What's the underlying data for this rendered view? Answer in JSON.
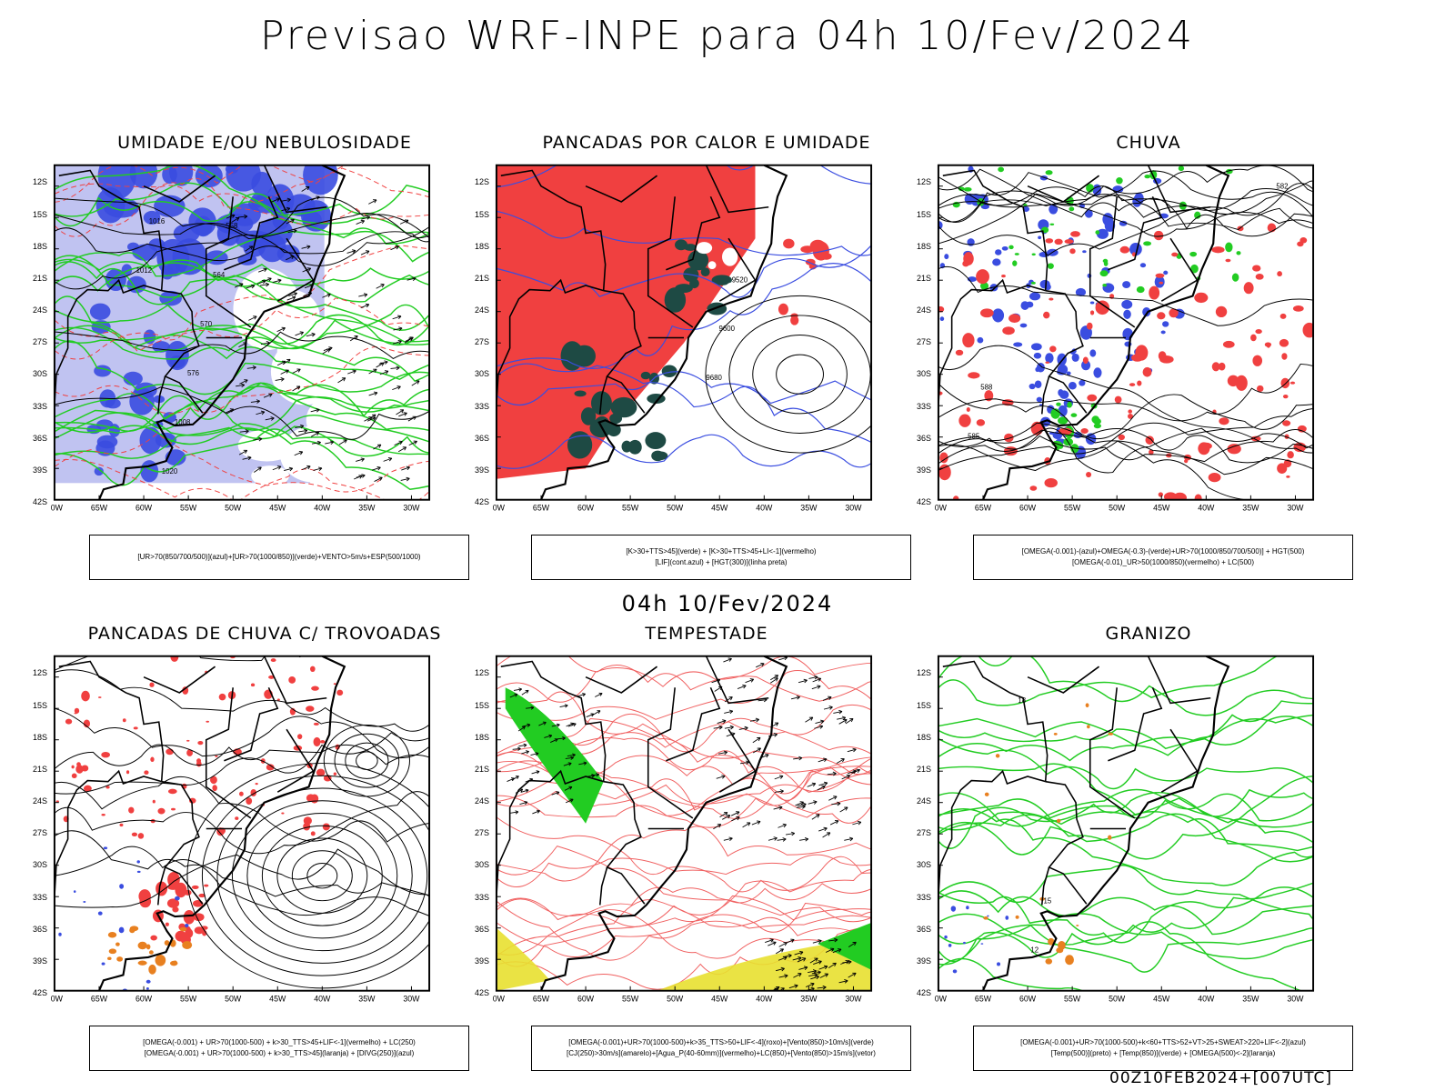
{
  "title": "Previsao WRF-INPE  para 04h 10/Fev/2024",
  "mid_time": "04h 10/Fev/2024",
  "footer": "00Z10FEB2024+[007UTC]",
  "axes": {
    "lat_labels": [
      "12S",
      "15S",
      "18S",
      "21S",
      "24S",
      "27S",
      "30S",
      "33S",
      "36S",
      "39S",
      "42S"
    ],
    "lon_labels": [
      "70W",
      "65W",
      "60W",
      "55W",
      "50W",
      "45W",
      "40W",
      "35W",
      "30W"
    ]
  },
  "colors": {
    "blue": "#3a4de0",
    "lightblue": "#b9bdf0",
    "green": "#22cc22",
    "red": "#f04040",
    "darkteal": "#1e4a44",
    "orange": "#e88020",
    "yellow": "#e8e030"
  },
  "panels": [
    {
      "title": "UMIDADE E/OU NEBULOSIDADE",
      "legend": [
        "[UR>70(850/700/500)](azul)+[UR>70(1000/850)](verde)+VENTO>5m/s+ESP(500/1000)"
      ],
      "labels": [
        "1012",
        "1016",
        "1020",
        "1008",
        "576",
        "570",
        "564",
        "558"
      ]
    },
    {
      "title": "PANCADAS POR CALOR E UMIDADE",
      "legend": [
        "[K>30+TTS>45](verde) + [K>30+TTS>45+LI<-1](vermelho)",
        "[LIF](cont.azul) + [HGT(300)](linha preta)"
      ],
      "labels": [
        "9680",
        "9600",
        "9520"
      ]
    },
    {
      "title": "CHUVA",
      "legend": [
        "[OMEGA(-0.001)-(azul)+OMEGA(-0.3)-(verde)+UR>70(1000/850/700/500)] + HGT(500)",
        "[OMEGA(-0.01)_UR>50(1000/850)(vermelho) + LC(500)"
      ],
      "labels": [
        "582",
        "585",
        "588"
      ]
    },
    {
      "title": "PANCADAS DE CHUVA C/ TROVOADAS",
      "legend": [
        "[OMEGA(-0.001) + UR>70(1000-500) + k>30_TTS>45+LIF<-1](vermelho) + LC(250)",
        "[OMEGA(-0.001) + UR>70(1000-500) + k>30_TTS>45](laranja) + [DIVG(250)](azul)"
      ],
      "labels": []
    },
    {
      "title": "TEMPESTADE",
      "legend": [
        "[OMEGA(-0.001)+UR>70(1000-500)+k>35_TTS>50+LIF<-4](roxo)+[Vento(850)>10m/s](verde)",
        "[CJ(250)>30m/s](amarelo)+[Agua_P(40-60mm)](vermelho)+LC(850)+[Vento(850)>15m/s](vetor)"
      ],
      "labels": []
    },
    {
      "title": "GRANIZO",
      "legend": [
        "[OMEGA(-0.001)+UR>70(1000-500)+k<60+TTS>52+VT>25+SWEAT>220+LIF<-2](azul)",
        "[Temp(500)](preto) + [Temp(850)](verde) + [OMEGA(500)<-2](laranja)"
      ],
      "labels": [
        "18",
        "12",
        "15"
      ]
    }
  ]
}
